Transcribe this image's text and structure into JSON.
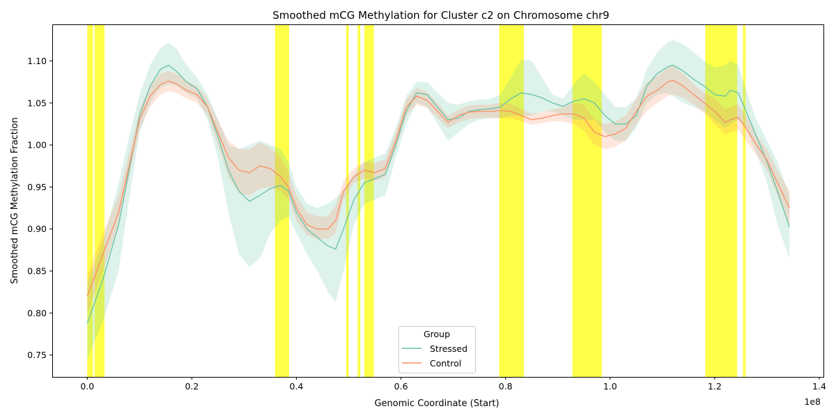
{
  "chart_data": {
    "type": "line",
    "title": "Smoothed mCG Methylation for Cluster c2 on Chromosome chr9",
    "xlabel": "Genomic Coordinate (Start)",
    "ylabel": "Smoothed mCG Methylation Fraction",
    "x_offset_text": "1e8",
    "xlim": [
      -6700000,
      140800000
    ],
    "ylim": [
      0.724,
      1.1435
    ],
    "x_ticks": [
      0,
      20000000,
      40000000,
      60000000,
      80000000,
      100000000,
      120000000,
      140000000
    ],
    "x_tick_labels": [
      "0.0",
      "0.2",
      "0.4",
      "0.6",
      "0.8",
      "1.0",
      "1.2",
      "1.4"
    ],
    "y_ticks": [
      0.75,
      0.8,
      0.85,
      0.9,
      0.95,
      1.0,
      1.05,
      1.1
    ],
    "y_tick_labels": [
      "0.75",
      "0.80",
      "0.85",
      "0.90",
      "0.95",
      "1.00",
      "1.05",
      "1.10"
    ],
    "grid": false,
    "legend": {
      "title": "Group",
      "placement": "bottom-center"
    },
    "highlight_color": "#ffff00",
    "highlight_regions": [
      [
        0,
        1100000
      ],
      [
        1400000,
        3300000
      ],
      [
        35900000,
        38600000
      ],
      [
        49500000,
        50000000
      ],
      [
        51700000,
        52200000
      ],
      [
        53000000,
        54800000
      ],
      [
        78800000,
        83500000
      ],
      [
        92800000,
        98400000
      ],
      [
        118200000,
        124300000
      ],
      [
        125400000,
        125900000
      ]
    ],
    "series": [
      {
        "name": "Stressed",
        "color": "#66c2a5",
        "x": [
          0,
          3000000,
          6000000,
          8000000,
          10000000,
          12000000,
          14000000,
          15500000,
          17000000,
          19000000,
          21000000,
          23000000,
          25000000,
          27000000,
          29000000,
          31000000,
          33000000,
          35000000,
          37000000,
          38500000,
          40000000,
          42000000,
          44000000,
          46000000,
          47500000,
          49000000,
          51000000,
          53000000,
          55000000,
          57000000,
          59000000,
          61000000,
          63000000,
          65000000,
          67000000,
          69000000,
          71000000,
          73000000,
          75000000,
          77000000,
          79000000,
          81000000,
          83000000,
          85000000,
          87000000,
          89000000,
          91000000,
          93000000,
          95000000,
          97000000,
          99000000,
          101000000,
          103000000,
          105000000,
          107000000,
          109000000,
          111000000,
          112000000,
          114000000,
          116000000,
          118000000,
          120000000,
          122000000,
          123000000,
          124500000,
          126000000,
          128000000,
          130000000,
          132000000,
          134300000
        ],
        "values": [
          0.788,
          0.84,
          0.905,
          0.97,
          1.035,
          1.07,
          1.09,
          1.095,
          1.088,
          1.075,
          1.067,
          1.045,
          1.01,
          0.97,
          0.945,
          0.933,
          0.94,
          0.948,
          0.952,
          0.945,
          0.92,
          0.9,
          0.89,
          0.88,
          0.876,
          0.9,
          0.935,
          0.955,
          0.96,
          0.965,
          1.0,
          1.04,
          1.062,
          1.06,
          1.045,
          1.03,
          1.032,
          1.04,
          1.042,
          1.043,
          1.045,
          1.055,
          1.062,
          1.06,
          1.056,
          1.05,
          1.046,
          1.052,
          1.055,
          1.05,
          1.035,
          1.025,
          1.025,
          1.035,
          1.07,
          1.085,
          1.093,
          1.095,
          1.088,
          1.078,
          1.07,
          1.06,
          1.058,
          1.065,
          1.062,
          1.04,
          1.01,
          0.98,
          0.945,
          0.902
        ],
        "lower": [
          0.745,
          0.79,
          0.85,
          0.935,
          1.015,
          1.05,
          1.068,
          1.072,
          1.07,
          1.062,
          1.055,
          1.03,
          0.985,
          0.92,
          0.87,
          0.855,
          0.865,
          0.895,
          0.91,
          0.915,
          0.895,
          0.87,
          0.85,
          0.825,
          0.813,
          0.85,
          0.905,
          0.93,
          0.935,
          0.94,
          0.985,
          1.025,
          1.05,
          1.045,
          1.025,
          1.005,
          1.015,
          1.025,
          1.03,
          1.032,
          1.032,
          1.035,
          1.035,
          1.035,
          1.04,
          1.04,
          1.035,
          1.03,
          1.03,
          1.03,
          1.015,
          1.005,
          1.005,
          1.02,
          1.05,
          1.06,
          1.062,
          1.058,
          1.05,
          1.045,
          1.04,
          1.03,
          1.02,
          1.025,
          1.03,
          1.02,
          0.99,
          0.955,
          0.905,
          0.865
        ],
        "upper": [
          0.835,
          0.885,
          0.955,
          1.01,
          1.06,
          1.095,
          1.115,
          1.122,
          1.115,
          1.095,
          1.08,
          1.06,
          1.03,
          1.0,
          0.995,
          1.0,
          1.005,
          1.0,
          0.995,
          0.98,
          0.95,
          0.93,
          0.925,
          0.93,
          0.937,
          0.945,
          0.965,
          0.98,
          0.985,
          0.99,
          1.02,
          1.058,
          1.075,
          1.075,
          1.062,
          1.05,
          1.048,
          1.052,
          1.054,
          1.055,
          1.06,
          1.08,
          1.102,
          1.1,
          1.08,
          1.06,
          1.055,
          1.072,
          1.085,
          1.075,
          1.06,
          1.045,
          1.045,
          1.055,
          1.09,
          1.11,
          1.122,
          1.125,
          1.12,
          1.11,
          1.1,
          1.092,
          1.095,
          1.1,
          1.095,
          1.065,
          1.03,
          1.005,
          0.98,
          0.94
        ]
      },
      {
        "name": "Control",
        "color": "#fc8d62",
        "x": [
          0,
          3000000,
          6000000,
          8000000,
          10000000,
          12000000,
          14000000,
          15500000,
          17000000,
          19000000,
          21000000,
          23000000,
          25000000,
          27000000,
          29000000,
          31000000,
          33000000,
          35000000,
          37000000,
          38500000,
          40000000,
          42000000,
          44000000,
          46000000,
          47500000,
          49000000,
          51000000,
          53000000,
          55000000,
          57000000,
          59000000,
          61000000,
          63000000,
          65000000,
          67000000,
          69000000,
          71000000,
          73000000,
          75000000,
          77000000,
          79000000,
          81000000,
          83000000,
          85000000,
          87000000,
          89000000,
          91000000,
          93000000,
          95000000,
          97000000,
          99000000,
          101000000,
          103000000,
          105000000,
          107000000,
          109000000,
          111000000,
          112000000,
          114000000,
          116000000,
          118000000,
          120000000,
          122000000,
          123000000,
          124500000,
          126000000,
          128000000,
          130000000,
          132000000,
          134300000
        ],
        "values": [
          0.82,
          0.87,
          0.92,
          0.975,
          1.03,
          1.058,
          1.072,
          1.076,
          1.073,
          1.065,
          1.06,
          1.045,
          1.015,
          0.985,
          0.97,
          0.967,
          0.975,
          0.972,
          0.962,
          0.95,
          0.925,
          0.905,
          0.9,
          0.9,
          0.91,
          0.945,
          0.962,
          0.97,
          0.967,
          0.972,
          1.005,
          1.045,
          1.058,
          1.053,
          1.04,
          1.027,
          1.035,
          1.039,
          1.04,
          1.04,
          1.041,
          1.04,
          1.035,
          1.03,
          1.032,
          1.035,
          1.037,
          1.037,
          1.032,
          1.015,
          1.01,
          1.013,
          1.02,
          1.04,
          1.058,
          1.065,
          1.075,
          1.077,
          1.07,
          1.06,
          1.05,
          1.04,
          1.027,
          1.03,
          1.033,
          1.02,
          1.0,
          0.982,
          0.955,
          0.925
        ],
        "lower": [
          0.8,
          0.85,
          0.905,
          0.962,
          1.018,
          1.045,
          1.06,
          1.064,
          1.062,
          1.055,
          1.05,
          1.035,
          1.0,
          0.962,
          0.943,
          0.94,
          0.948,
          0.95,
          0.945,
          0.935,
          0.91,
          0.893,
          0.888,
          0.888,
          0.895,
          0.935,
          0.955,
          0.96,
          0.957,
          0.962,
          0.995,
          1.035,
          1.048,
          1.044,
          1.032,
          1.02,
          1.027,
          1.031,
          1.032,
          1.032,
          1.032,
          1.032,
          1.028,
          1.024,
          1.026,
          1.028,
          1.028,
          1.025,
          1.017,
          1.0,
          0.995,
          0.998,
          1.005,
          1.025,
          1.04,
          1.05,
          1.058,
          1.06,
          1.056,
          1.048,
          1.038,
          1.025,
          1.012,
          1.015,
          1.018,
          1.005,
          0.988,
          0.97,
          0.94,
          0.905
        ],
        "upper": [
          0.845,
          0.895,
          0.94,
          0.99,
          1.042,
          1.07,
          1.085,
          1.088,
          1.085,
          1.076,
          1.07,
          1.055,
          1.03,
          1.005,
          0.995,
          0.995,
          1.003,
          0.997,
          0.985,
          0.967,
          0.94,
          0.92,
          0.915,
          0.915,
          0.928,
          0.958,
          0.972,
          0.98,
          0.978,
          0.983,
          1.015,
          1.054,
          1.068,
          1.063,
          1.05,
          1.035,
          1.042,
          1.047,
          1.048,
          1.048,
          1.05,
          1.049,
          1.043,
          1.037,
          1.039,
          1.042,
          1.045,
          1.05,
          1.048,
          1.03,
          1.025,
          1.028,
          1.035,
          1.055,
          1.075,
          1.082,
          1.092,
          1.094,
          1.085,
          1.072,
          1.062,
          1.055,
          1.042,
          1.045,
          1.048,
          1.035,
          1.012,
          0.995,
          0.97,
          0.945
        ]
      }
    ]
  }
}
